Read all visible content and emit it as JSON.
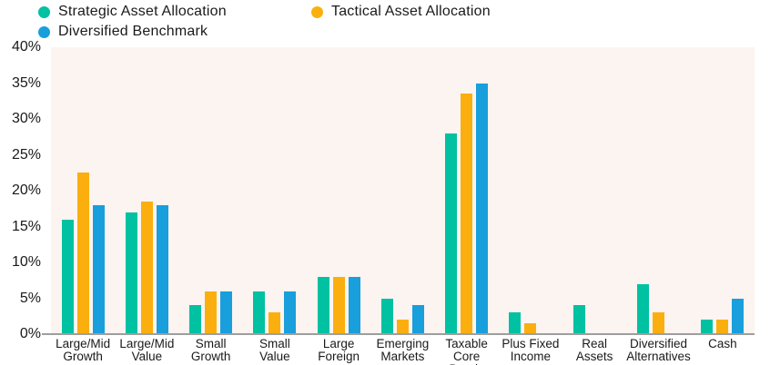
{
  "legend": {
    "items": [
      {
        "label": "Strategic Asset Allocation",
        "color": "#00C1A1"
      },
      {
        "label": "Tactical Asset Allocation",
        "color": "#FBAF0E"
      },
      {
        "label": "Diversified Benchmark",
        "color": "#189FDC"
      }
    ]
  },
  "chart_data": {
    "type": "bar",
    "title": "",
    "xlabel": "",
    "ylabel": "",
    "ylim": [
      0,
      40
    ],
    "grid": false,
    "legend_position": "top-left",
    "plot_bg": "#FBF4F1",
    "axis_line_color": "#9e9e9e",
    "y_ticks": [
      "40%",
      "35%",
      "30%",
      "25%",
      "20%",
      "15%",
      "10%",
      "5%",
      "0%"
    ],
    "categories": [
      "Large/Mid Growth",
      "Large/Mid Value",
      "Small Growth",
      "Small Value",
      "Large Foreign",
      "Emerging Markets",
      "Taxable Core Bonds",
      "Plus Fixed Income",
      "Real Assets",
      "Diversified Alternatives",
      "Cash"
    ],
    "category_label_lines": [
      [
        "Large/Mid",
        "Growth"
      ],
      [
        "Large/Mid",
        "Value"
      ],
      [
        "Small",
        "Growth"
      ],
      [
        "Small",
        "Value"
      ],
      [
        "Large",
        "Foreign"
      ],
      [
        "Emerging",
        "Markets"
      ],
      [
        "Taxable",
        "Core Bonds"
      ],
      [
        "Plus Fixed",
        "Income"
      ],
      [
        "Real",
        "Assets"
      ],
      [
        "Diversified",
        "Alternatives"
      ],
      [
        "Cash"
      ]
    ],
    "series": [
      {
        "name": "Strategic Asset Allocation",
        "color": "#00C1A1",
        "values": [
          16,
          17,
          4,
          6,
          8,
          5,
          28,
          3,
          4,
          7,
          2
        ]
      },
      {
        "name": "Tactical Asset Allocation",
        "color": "#FBAF0E",
        "values": [
          22.5,
          18.5,
          6,
          3,
          8,
          2,
          33.5,
          1.5,
          0,
          3,
          2
        ]
      },
      {
        "name": "Diversified Benchmark",
        "color": "#189FDC",
        "values": [
          18,
          18,
          6,
          6,
          8,
          4,
          35,
          0,
          0,
          0,
          5
        ]
      }
    ]
  }
}
